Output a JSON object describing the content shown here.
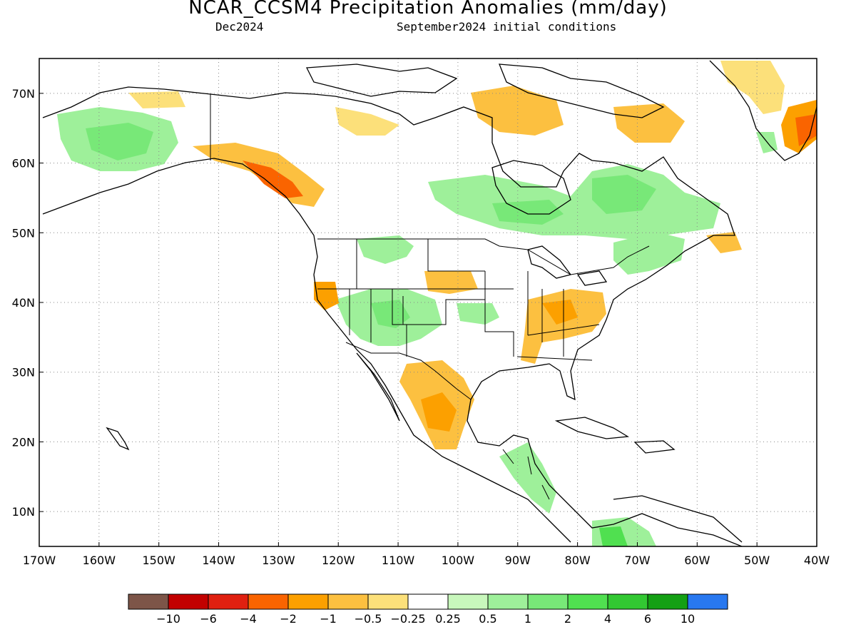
{
  "header": {
    "title": "NCAR_CCSM4 Precipitation Anomalies (mm/day)",
    "valid": "Dec2024",
    "init": "September2024 initial conditions"
  },
  "axes": {
    "lon_labels": [
      "170W",
      "160W",
      "150W",
      "140W",
      "130W",
      "120W",
      "110W",
      "100W",
      "90W",
      "80W",
      "70W",
      "60W",
      "50W",
      "40W"
    ],
    "lat_labels": [
      "10N",
      "20N",
      "30N",
      "40N",
      "50N",
      "60N",
      "70N"
    ]
  },
  "legend": {
    "labels": [
      "-10",
      "-6",
      "-4",
      "-2",
      "-1",
      "-0.5",
      "-0.25",
      "0.25",
      "0.5",
      "1",
      "2",
      "4",
      "6",
      "10"
    ],
    "colors": [
      "#7d5548",
      "#c20000",
      "#e02010",
      "#fa6400",
      "#fca000",
      "#fcc040",
      "#fce07a",
      "#ffffff",
      "#c8f7bc",
      "#9ef09a",
      "#78e878",
      "#50e050",
      "#32c832",
      "#14a014",
      "#2878f0"
    ]
  },
  "colors": {
    "land_outline": "#000000",
    "grid": "#888888"
  }
}
